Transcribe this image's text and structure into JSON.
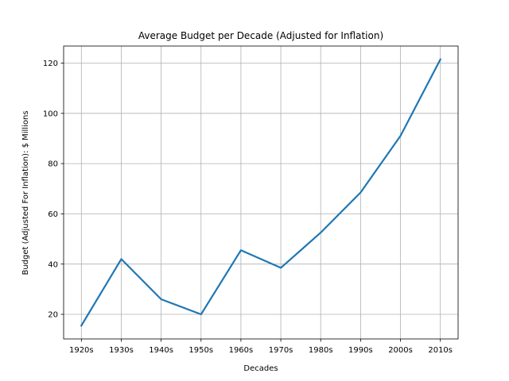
{
  "chart_data": {
    "type": "line",
    "title": "Average Budget per Decade (Adjusted for Inflation)",
    "xlabel": "Decades",
    "ylabel": "Budget (Adjusted For Inflation): $ Millions",
    "categories": [
      "1920s",
      "1930s",
      "1940s",
      "1950s",
      "1960s",
      "1970s",
      "1980s",
      "1990s",
      "2000s",
      "2010s"
    ],
    "series": [
      {
        "values": [
          15.5,
          42.0,
          26.0,
          20.0,
          45.5,
          38.5,
          52.5,
          68.5,
          91.0,
          121.5
        ],
        "color": "#1f77b4"
      }
    ],
    "ylim": [
      10.2,
      126.8
    ],
    "yticks": [
      20,
      40,
      60,
      80,
      100,
      120
    ],
    "grid": true
  }
}
